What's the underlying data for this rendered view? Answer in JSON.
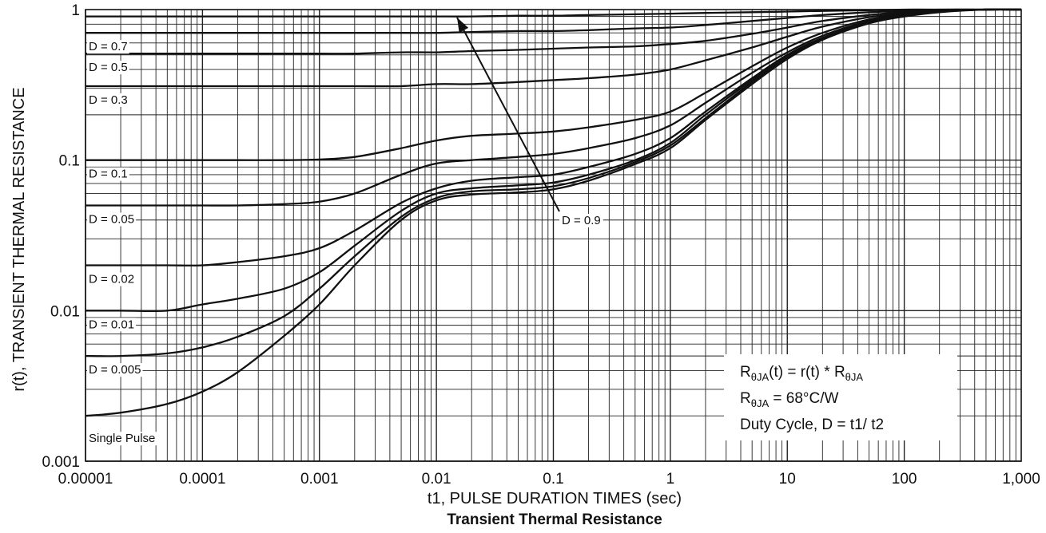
{
  "chart_data": {
    "type": "line",
    "caption": "Transient Thermal Resistance",
    "xlabel": "t1, PULSE DURATION TIMES (sec)",
    "ylabel": "r(t), TRANSIENT THERMAL RESISTANCE",
    "xscale": "log",
    "yscale": "log",
    "xlim": [
      1e-05,
      1000
    ],
    "ylim": [
      0.001,
      1
    ],
    "x_tick_labels": [
      "0.00001",
      "0.0001",
      "0.001",
      "0.01",
      "0.1",
      "1",
      "10",
      "100",
      "1,000"
    ],
    "y_tick_labels": [
      "0.001",
      "0.01",
      "0.1",
      "1"
    ],
    "grid": true,
    "x": [
      1e-05,
      2e-05,
      5e-05,
      0.0001,
      0.0002,
      0.0005,
      0.001,
      0.002,
      0.005,
      0.01,
      0.02,
      0.05,
      0.1,
      0.2,
      0.5,
      1,
      2,
      5,
      10,
      20,
      50,
      100,
      200,
      500,
      1000
    ],
    "series": [
      {
        "name": "D = 0.9",
        "values": [
          0.9,
          0.9,
          0.9,
          0.9,
          0.9,
          0.9,
          0.9,
          0.9,
          0.9,
          0.9,
          0.9,
          0.91,
          0.91,
          0.92,
          0.93,
          0.94,
          0.95,
          0.96,
          0.97,
          0.98,
          0.99,
          1.0,
          1.0,
          1.0,
          1.0
        ]
      },
      {
        "name": "D = 0.7",
        "values": [
          0.7,
          0.7,
          0.7,
          0.7,
          0.7,
          0.7,
          0.7,
          0.7,
          0.7,
          0.7,
          0.71,
          0.72,
          0.72,
          0.73,
          0.75,
          0.76,
          0.79,
          0.84,
          0.88,
          0.92,
          0.96,
          0.98,
          1.0,
          1.0,
          1.0
        ]
      },
      {
        "name": "D = 0.5",
        "values": [
          0.51,
          0.51,
          0.51,
          0.51,
          0.51,
          0.51,
          0.51,
          0.51,
          0.52,
          0.52,
          0.53,
          0.54,
          0.55,
          0.56,
          0.57,
          0.59,
          0.62,
          0.69,
          0.76,
          0.84,
          0.92,
          0.96,
          0.98,
          1.0,
          1.0
        ]
      },
      {
        "name": "D = 0.3",
        "values": [
          0.31,
          0.31,
          0.31,
          0.31,
          0.31,
          0.31,
          0.31,
          0.31,
          0.31,
          0.32,
          0.32,
          0.33,
          0.34,
          0.35,
          0.37,
          0.4,
          0.46,
          0.56,
          0.66,
          0.77,
          0.89,
          0.94,
          0.98,
          1.0,
          1.0
        ]
      },
      {
        "name": "D = 0.1",
        "values": [
          0.1,
          0.1,
          0.1,
          0.1,
          0.1,
          0.1,
          0.101,
          0.105,
          0.12,
          0.135,
          0.145,
          0.15,
          0.155,
          0.165,
          0.185,
          0.21,
          0.28,
          0.42,
          0.56,
          0.7,
          0.86,
          0.93,
          0.97,
          1.0,
          1.0
        ]
      },
      {
        "name": "D = 0.05",
        "values": [
          0.05,
          0.05,
          0.05,
          0.05,
          0.05,
          0.051,
          0.053,
          0.06,
          0.08,
          0.095,
          0.1,
          0.105,
          0.11,
          0.12,
          0.14,
          0.17,
          0.24,
          0.38,
          0.52,
          0.67,
          0.84,
          0.92,
          0.97,
          1.0,
          1.0
        ]
      },
      {
        "name": "D = 0.02",
        "values": [
          0.02,
          0.02,
          0.02,
          0.02,
          0.021,
          0.023,
          0.026,
          0.034,
          0.052,
          0.065,
          0.073,
          0.077,
          0.08,
          0.09,
          0.11,
          0.14,
          0.21,
          0.35,
          0.5,
          0.65,
          0.83,
          0.91,
          0.97,
          1.0,
          1.0
        ]
      },
      {
        "name": "D = 0.01",
        "values": [
          0.01,
          0.01,
          0.01,
          0.011,
          0.012,
          0.014,
          0.018,
          0.027,
          0.046,
          0.06,
          0.065,
          0.068,
          0.071,
          0.08,
          0.1,
          0.13,
          0.2,
          0.34,
          0.49,
          0.64,
          0.82,
          0.91,
          0.97,
          1.0,
          1.0
        ]
      },
      {
        "name": "D = 0.005",
        "values": [
          0.005,
          0.005,
          0.0052,
          0.0057,
          0.0067,
          0.0092,
          0.014,
          0.023,
          0.042,
          0.056,
          0.062,
          0.064,
          0.067,
          0.076,
          0.097,
          0.125,
          0.19,
          0.33,
          0.48,
          0.64,
          0.82,
          0.9,
          0.97,
          1.0,
          1.0
        ]
      },
      {
        "name": "Single Pulse",
        "values": [
          0.002,
          0.0021,
          0.0024,
          0.0029,
          0.0039,
          0.0068,
          0.011,
          0.02,
          0.04,
          0.054,
          0.059,
          0.061,
          0.064,
          0.073,
          0.094,
          0.12,
          0.185,
          0.32,
          0.47,
          0.63,
          0.81,
          0.9,
          0.96,
          1.0,
          1.0
        ]
      }
    ]
  },
  "annotation": {
    "line1_main": "R",
    "line1_sub": "θJA",
    "line1_mid": "(t) = r(t) * R",
    "line1_sub2": "θJA",
    "line2_main": "R",
    "line2_sub": "θJA",
    "line2_rest": " = 68°C/W",
    "line3": "Duty Cycle, D = t1/ t2"
  },
  "arrow_label": "D = 0.9"
}
